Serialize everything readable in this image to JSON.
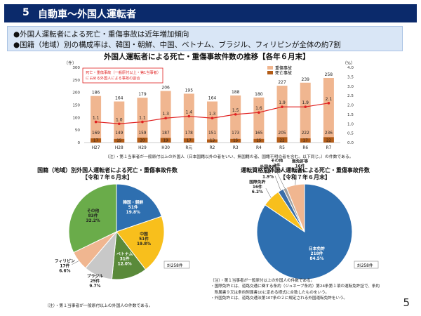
{
  "header": {
    "number": "5",
    "title": "自動車～外国人運転者"
  },
  "bullets": [
    "●外国人運転者による死亡・重傷事故は近年増加傾向",
    "●国籍（地域）別の構成率は、韓国・朝鮮、中国、ベトナム、ブラジル、フィリピンが全体の約7割"
  ],
  "trend_chart": {
    "title": "外国人運転者による死亡・重傷事故件数の推移【各年６月末】",
    "left_axis_unit": "（件）",
    "right_axis_unit": "（%）",
    "left_ticks": [
      "300",
      "250",
      "200",
      "150",
      "100",
      "50",
      "0"
    ],
    "right_ticks": [
      "4.0",
      "3.5",
      "3.0",
      "2.5",
      "2.0",
      "1.5",
      "1.0",
      "0.5",
      "0.0"
    ],
    "legend": [
      "重傷事故",
      "死亡事故"
    ],
    "annotation": "死亡・重傷事故（一般原付以上・第1当事者）に占める外国人による事故の割合",
    "note": "（注）・第１当事者が一般原付以上の外国人（日本国籍以外の者をいい、無国籍の者、国籍不明の者を含む。以下同じ。）の件数である。"
  },
  "pie1": {
    "title_line1": "国籍（地域）別外国人運転者による死亡・重傷事故件数",
    "title_line2": "【令和７年６月末】",
    "total": "計258件",
    "note": "（注）・第１当事者が一般原付以上の外国人の件数である。"
  },
  "pie2": {
    "title_line1": "運転資格別外国人運転者による死亡・重傷事故件数",
    "title_line2": "【令和７年６月末】",
    "total": "計258件",
    "notes": [
      "（注）・第１当事者が一般原付以上の外国人の件数である。",
      "・国際免許とは、道路交通に関する条約（ジュネーブ条約）第24条第１項の運転免許証で、条約",
      "　附属書９又は条約附属書10に定める様式に合致したものをいう。",
      "・外国免許とは、道路交通法第107条の２に規定される外国運転免許をいう。"
    ]
  },
  "page_number": "5",
  "colors": {
    "serious": "#f0b690",
    "fatal": "#b35c17",
    "line": "#e02020",
    "header_bg": "#0b2a6b",
    "bullet_bg": "#d9e6f6"
  },
  "chart_data": [
    {
      "type": "bar",
      "title": "外国人運転者による死亡・重傷事故件数の推移【各年６月末】",
      "categories": [
        "H27",
        "H28",
        "H29",
        "H30",
        "R元",
        "R2",
        "R3",
        "R4",
        "R5",
        "R6",
        "R7"
      ],
      "totals": [
        186,
        164,
        179,
        206,
        195,
        164,
        188,
        180,
        227,
        239,
        258
      ],
      "series": [
        {
          "name": "重傷事故",
          "values": [
            169,
            149,
            159,
            187,
            178,
            151,
            173,
            165,
            205,
            222,
            236
          ]
        },
        {
          "name": "死亡事故",
          "values": [
            17,
            15,
            20,
            19,
            17,
            13,
            15,
            15,
            22,
            17,
            22
          ]
        },
        {
          "name": "死亡・重傷事故（一般原付以上・第1当事者）に占める外国人による事故の割合",
          "type": "line",
          "axis": "right",
          "values": [
            1.1,
            1.0,
            1.1,
            1.3,
            1.4,
            1.3,
            1.5,
            1.6,
            1.9,
            1.9,
            2.1
          ]
        }
      ],
      "ylim": [
        0,
        300
      ],
      "ylim_right": [
        0.0,
        4.0
      ]
    },
    {
      "type": "pie",
      "title": "国籍（地域）別外国人運転者による死亡・重傷事故件数【令和７年６月末】",
      "slices": [
        {
          "label": "韓国・朝鮮",
          "count": "51件",
          "value": 51,
          "pct": "19.8%",
          "color": "#2e6fb0"
        },
        {
          "label": "中国",
          "count": "51件",
          "value": 51,
          "pct": "19.8%",
          "color": "#f8bf1c"
        },
        {
          "label": "ベトナム",
          "count": "31件",
          "value": 31,
          "pct": "12.0%",
          "color": "#5a8a3a"
        },
        {
          "label": "ブラジル",
          "count": "25件",
          "value": 25,
          "pct": "9.7%",
          "color": "#c8c8c8"
        },
        {
          "label": "フィリピン",
          "count": "17件",
          "value": 17,
          "pct": "6.6%",
          "color": "#f0b690"
        },
        {
          "label": "その他",
          "count": "83件",
          "value": 83,
          "pct": "32.2%",
          "color": "#6aac4a"
        }
      ]
    },
    {
      "type": "pie",
      "title": "運転資格別外国人運転者による死亡・重傷事故件数【令和７年６月末】",
      "slices": [
        {
          "label": "日本免許",
          "count": "218件",
          "value": 218,
          "pct": "84.5%",
          "color": "#2e6fb0"
        },
        {
          "label": "国際免許",
          "count": "16件",
          "value": 16,
          "pct": "6.2%",
          "color": "#f8bf1c"
        },
        {
          "label": "外国免許",
          "count": "5件",
          "value": 5,
          "pct": "1.9%",
          "color": "#3a6ea8"
        },
        {
          "label": "その他",
          "count": "3件",
          "value": 3,
          "pct": "1.2%",
          "color": "#a0a0a0"
        },
        {
          "label": "無免許等",
          "count": "16件",
          "value": 16,
          "pct": "6.2%",
          "color": "#f0b690"
        }
      ]
    }
  ]
}
